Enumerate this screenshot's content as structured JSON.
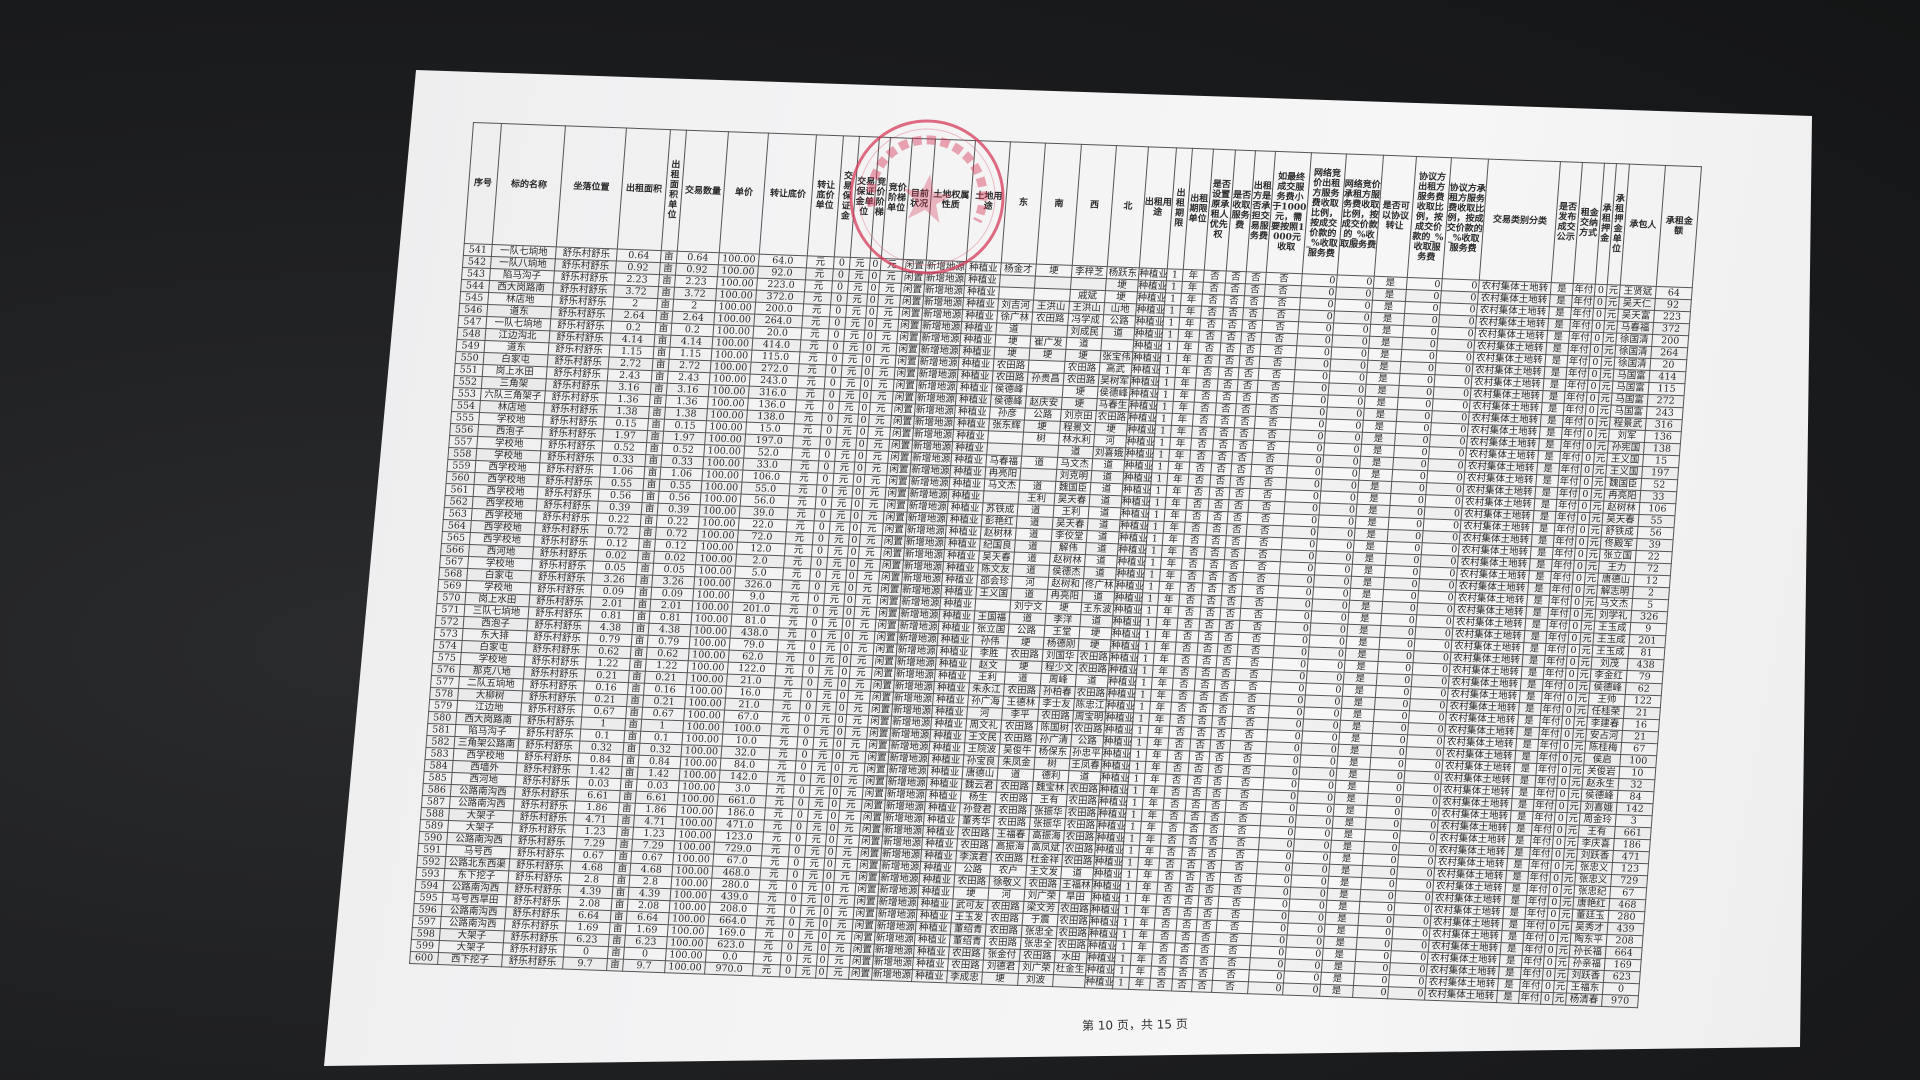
{
  "document": {
    "stamp_text": "舒乐乡舒乐村经济合作社",
    "footer": "第 10 页，共 15 页",
    "stamp_color": "#d63c5a"
  },
  "table": {
    "headers": [
      "序号",
      "标的名称",
      "坐落位置",
      "出租面积",
      "出租面积单位",
      "交易数量",
      "单价",
      "转让底价",
      "转让底价单位",
      "交易保证金",
      "交易保证金单位",
      "竞价阶梯",
      "竞价阶梯单位",
      "目前状况",
      "土地权属性质",
      "土地用途",
      "东",
      "南",
      "西",
      "北",
      "出租用途",
      "出租期限",
      "出租期限单位",
      "是否设置原承租人优先权",
      "是否收取服务费",
      "出租方是否承担交易服务费",
      "如最终成交服务费小于1000元，需要按照1000元收取",
      "网络竞价出租方服务费收取比例，按成交价款的_%收取服务费",
      "网络竞价承租方服务费收取比例，按成交价款的_%收取服务费",
      "是否可以协议转让",
      "协议方出租方服务费收取比例，按成交价款的_%收取服务费",
      "协议方承租方服务费收取比例，按成交价款的_%收取服务费",
      "交易类别分类",
      "是否发布成交公示",
      "租金交纳方式",
      "承租押金",
      "承租押金单位",
      "承包人",
      "承租金额"
    ],
    "common": {
      "area_unit": "亩",
      "unit_price": "100.00",
      "price_unit": "元",
      "deposit": "0",
      "deposit_unit": "元",
      "bid_step": "0",
      "bid_step_unit": "元",
      "status": "闲置",
      "ownership": "新增地源",
      "land_use": "种植业",
      "rent_use": "种植业",
      "term": "1",
      "term_unit": "年",
      "priority": "否",
      "service_fee": "否",
      "lessor_bears_fee": "否",
      "min_fee_1000": "否",
      "online_lessor_pct": "0",
      "online_lessee_pct": "0",
      "negotiable": "是",
      "agreed_lessor_pct": "0",
      "agreed_lessee_pct": "0",
      "category": "农村集体土地转",
      "publish": "是",
      "payment": "年付",
      "rent_deposit": "0",
      "rent_deposit_unit": "元"
    },
    "rows": [
      [
        "541",
        "一队七垧地",
        "舒乐村舒乐",
        "0.64",
        "64.0",
        "杨金才",
        "埂",
        "李梓芝",
        "杨跃东",
        "王贤斌",
        "64"
      ],
      [
        "542",
        "一队八垧地",
        "舒乐村舒乐",
        "0.92",
        "92.0",
        "",
        "",
        "",
        "埂",
        "吴天仁",
        "92"
      ],
      [
        "543",
        "陷马沟子",
        "舒乐村舒乐",
        "2.23",
        "223.0",
        "",
        "",
        "戚斌",
        "埂",
        "吴天富",
        "223"
      ],
      [
        "544",
        "西大岗路南",
        "舒乐村舒乐",
        "3.72",
        "372.0",
        "刘吉河",
        "王洪山",
        "王洪山",
        "山地",
        "马春福",
        "372"
      ],
      [
        "545",
        "林店地",
        "舒乐村舒乐",
        "2",
        "200.0",
        "徐广林",
        "农田路",
        "冯学成",
        "公路",
        "徐国清",
        "200"
      ],
      [
        "546",
        "道东",
        "舒乐村舒乐",
        "2.64",
        "264.0",
        "道",
        "",
        "刘成民",
        "道",
        "徐国清",
        "264"
      ],
      [
        "547",
        "一队七垧地",
        "舒乐村舒乐",
        "0.2",
        "20.0",
        "埂",
        "崔广发",
        "道",
        "",
        "徐国清",
        "20"
      ],
      [
        "548",
        "江边沟北",
        "舒乐村舒乐",
        "4.14",
        "414.0",
        "埂",
        "埂",
        "埂",
        "张宝伟",
        "马国富",
        "414"
      ],
      [
        "549",
        "道东",
        "舒乐村舒乐",
        "1.15",
        "115.0",
        "农田路",
        "",
        "农田路",
        "高武",
        "马国富",
        "115"
      ],
      [
        "550",
        "白家屯",
        "舒乐村舒乐",
        "2.72",
        "272.0",
        "农田路",
        "孙贵昌",
        "农田路",
        "吴树军",
        "马国富",
        "272"
      ],
      [
        "551",
        "岗上水田",
        "舒乐村舒乐",
        "2.43",
        "243.0",
        "侯德峰",
        "",
        "埂",
        "侯德峰",
        "马国富",
        "243"
      ],
      [
        "552",
        "三角架",
        "舒乐村舒乐",
        "3.16",
        "316.0",
        "侯德峰",
        "赵庆安",
        "埂",
        "马春生",
        "程景武",
        "316"
      ],
      [
        "553",
        "六队三角架子",
        "舒乐村舒乐",
        "1.36",
        "136.0",
        "孙彦",
        "公路",
        "刘京田",
        "农田路",
        "刘军",
        "136"
      ],
      [
        "554",
        "林店地",
        "舒乐村舒乐",
        "1.38",
        "138.0",
        "张东辉",
        "埂",
        "程景文",
        "埂",
        "孙宪国",
        "138"
      ],
      [
        "555",
        "学校地",
        "舒乐村舒乐",
        "0.15",
        "15.0",
        "",
        "树",
        "林水利",
        "河",
        "王义国",
        "15"
      ],
      [
        "556",
        "西泡子",
        "舒乐村舒乐",
        "1.97",
        "197.0",
        "",
        "",
        "道",
        "刘喜娥",
        "王义国",
        "197"
      ],
      [
        "557",
        "学校地",
        "舒乐村舒乐",
        "0.52",
        "52.0",
        "马春福",
        "道",
        "马文杰",
        "道",
        "魏国臣",
        "52"
      ],
      [
        "558",
        "学校地",
        "舒乐村舒乐",
        "0.33",
        "33.0",
        "冉亮阳",
        "",
        "刘克明",
        "道",
        "冉亮阳",
        "33"
      ],
      [
        "559",
        "西学校地",
        "舒乐村舒乐",
        "1.06",
        "106.0",
        "马文杰",
        "道",
        "魏国臣",
        "道",
        "赵树林",
        "106"
      ],
      [
        "560",
        "西学校地",
        "舒乐村舒乐",
        "0.55",
        "55.0",
        "",
        "王利",
        "吴天春",
        "道",
        "吴天春",
        "55"
      ],
      [
        "561",
        "西学校地",
        "舒乐村舒乐",
        "0.56",
        "56.0",
        "苏铁成",
        "道",
        "王利",
        "道",
        "舒铁成",
        "56"
      ],
      [
        "562",
        "西学校地",
        "舒乐村舒乐",
        "0.39",
        "39.0",
        "彭艳红",
        "道",
        "吴天春",
        "道",
        "佟殿军",
        "39"
      ],
      [
        "563",
        "西学校地",
        "舒乐村舒乐",
        "0.22",
        "22.0",
        "赵树林",
        "道",
        "李佼堂",
        "道",
        "张立国",
        "22"
      ],
      [
        "564",
        "西学校地",
        "舒乐村舒乐",
        "0.72",
        "72.0",
        "纪国良",
        "道",
        "解伟",
        "道",
        "王力",
        "72"
      ],
      [
        "565",
        "西学校地",
        "舒乐村舒乐",
        "0.12",
        "12.0",
        "吴天春",
        "道",
        "赵树林",
        "道",
        "唐德山",
        "12"
      ],
      [
        "566",
        "西河地",
        "舒乐村舒乐",
        "0.02",
        "2.0",
        "陈文友",
        "道",
        "侯德杰",
        "道",
        "解志明",
        "2"
      ],
      [
        "567",
        "学校地",
        "舒乐村舒乐",
        "0.05",
        "5.0",
        "邵会珍",
        "河",
        "赵树和",
        "佟广林",
        "马文杰",
        "5"
      ],
      [
        "568",
        "白家屯",
        "舒乐村舒乐",
        "3.26",
        "326.0",
        "王义国",
        "道",
        "冉亮阳",
        "道",
        "刘学礼",
        "326"
      ],
      [
        "569",
        "学校地",
        "舒乐村舒乐",
        "0.09",
        "9.0",
        "",
        "刘宁文",
        "埂",
        "王东波",
        "王玉成",
        "9"
      ],
      [
        "570",
        "岗上水田",
        "舒乐村舒乐",
        "2.01",
        "201.0",
        "王国福",
        "道",
        "李洋",
        "道",
        "王玉成",
        "201"
      ],
      [
        "571",
        "三队七垧地",
        "舒乐村舒乐",
        "0.81",
        "81.0",
        "张立国",
        "公路",
        "王堂",
        "埂",
        "王玉成",
        "81"
      ],
      [
        "572",
        "西泡子",
        "舒乐村舒乐",
        "4.38",
        "438.0",
        "孙伟",
        "埂",
        "杨德刚",
        "埂",
        "刘茂",
        "438"
      ],
      [
        "573",
        "东大排",
        "舒乐村舒乐",
        "0.79",
        "79.0",
        "李胜",
        "农田路",
        "刘国华",
        "农田路",
        "李金红",
        "79"
      ],
      [
        "574",
        "白家屯",
        "舒乐村舒乐",
        "0.62",
        "62.0",
        "赵文",
        "埂",
        "程少文",
        "农田路",
        "侯德峰",
        "62"
      ],
      [
        "575",
        "学校地",
        "舒乐村舒乐",
        "1.22",
        "122.0",
        "王利",
        "道",
        "周峰",
        "道",
        "王帅",
        "122"
      ],
      [
        "576",
        "那克八地",
        "舒乐村舒乐",
        "0.21",
        "21.0",
        "朱永江",
        "农田路",
        "孙柏春",
        "农田路",
        "任桂荣",
        "21"
      ],
      [
        "577",
        "二队五垧地",
        "舒乐村舒乐",
        "0.16",
        "16.0",
        "孙广海",
        "王德林",
        "李士友",
        "陈忠江",
        "李建春",
        "16"
      ],
      [
        "578",
        "大柳树",
        "舒乐村舒乐",
        "0.21",
        "21.0",
        "河",
        "李平",
        "农田路",
        "周宝明",
        "安占河",
        "21"
      ],
      [
        "579",
        "江边地",
        "舒乐村舒乐",
        "0.67",
        "67.0",
        "周文礼",
        "农田路",
        "陈国树",
        "农田路",
        "陈桂梅",
        "67"
      ],
      [
        "580",
        "西大岗路南",
        "舒乐村舒乐",
        "1",
        "100.0",
        "王文民",
        "农田路",
        "孙广清",
        "公路",
        "侯启",
        "100"
      ],
      [
        "581",
        "陷马沟子",
        "舒乐村舒乐",
        "0.1",
        "10.0",
        "王院波",
        "吴俊牛",
        "杨保东",
        "孙忠平",
        "关俊岩",
        "10"
      ],
      [
        "582",
        "三角架公路南",
        "舒乐村舒乐",
        "0.32",
        "32.0",
        "孙宝良",
        "朱凤金",
        "树",
        "王凤春",
        "赵永生",
        "32"
      ],
      [
        "583",
        "西学校地",
        "舒乐村舒乐",
        "0.84",
        "84.0",
        "唐德山",
        "道",
        "德利",
        "道",
        "侯德峰",
        "84"
      ],
      [
        "584",
        "西墙外",
        "舒乐村舒乐",
        "1.42",
        "142.0",
        "魏云君",
        "农田路",
        "魏宝林",
        "农田路",
        "刘喜娥",
        "142"
      ],
      [
        "585",
        "西河地",
        "舒乐村舒乐",
        "0.03",
        "3.0",
        "杨生",
        "农田路",
        "王有",
        "农田路",
        "周金玲",
        "3"
      ],
      [
        "586",
        "公路南沟西",
        "舒乐村舒乐",
        "6.61",
        "661.0",
        "孙登君",
        "农田路",
        "张振华",
        "农田路",
        "王有",
        "661"
      ],
      [
        "587",
        "公路南沟西",
        "舒乐村舒乐",
        "1.86",
        "186.0",
        "董秀华",
        "农田路",
        "张振华",
        "农田路",
        "李庆喜",
        "186"
      ],
      [
        "588",
        "大架子",
        "舒乐村舒乐",
        "4.71",
        "471.0",
        "农田路",
        "王福春",
        "高振海",
        "农田路",
        "刘跃香",
        "471"
      ],
      [
        "589",
        "大架子",
        "舒乐村舒乐",
        "1.23",
        "123.0",
        "农田路",
        "高振海",
        "高凤斌",
        "农田路",
        "张忠义",
        "123"
      ],
      [
        "590",
        "公路南沟西",
        "舒乐村舒乐",
        "7.29",
        "729.0",
        "李滨君",
        "农田路",
        "杜金祥",
        "农田路",
        "张忠义",
        "729"
      ],
      [
        "591",
        "马号西",
        "舒乐村舒乐",
        "0.67",
        "67.0",
        "公路",
        "农户",
        "王文发",
        "道",
        "张忠纪",
        "67"
      ],
      [
        "592",
        "公路北东西渠",
        "舒乐村舒乐",
        "4.68",
        "468.0",
        "农田路",
        "徐敬义",
        "农田路",
        "王福林",
        "唐艳红",
        "468"
      ],
      [
        "593",
        "东下挖子",
        "舒乐村舒乐",
        "2.8",
        "280.0",
        "埂",
        "河",
        "刘广荣",
        "旱田",
        "董廷玉",
        "280"
      ],
      [
        "594",
        "公路南沟西",
        "舒乐村舒乐",
        "4.39",
        "439.0",
        "武可友",
        "农田路",
        "梁文芳",
        "农田路",
        "吴秀才",
        "439"
      ],
      [
        "595",
        "马号西旱田",
        "舒乐村舒乐",
        "2.08",
        "208.0",
        "王玉发",
        "农田路",
        "于震",
        "农田路",
        "陶东平",
        "208"
      ],
      [
        "596",
        "公路南沟西",
        "舒乐村舒乐",
        "6.64",
        "664.0",
        "董绍青",
        "农田路",
        "张忠全",
        "农田路",
        "孙长福",
        "664"
      ],
      [
        "597",
        "公路南沟西",
        "舒乐村舒乐",
        "1.69",
        "169.0",
        "董绍青",
        "农田路",
        "张忠全",
        "农田路",
        "孙亲福",
        "169"
      ],
      [
        "598",
        "大架子",
        "舒乐村舒乐",
        "6.23",
        "623.0",
        "农田路",
        "张金付",
        "农田路",
        "水田",
        "刘跃香",
        "623"
      ],
      [
        "599",
        "大架子",
        "舒乐村舒乐",
        "0",
        "0.0",
        "农田路",
        "刘德君",
        "刘广荣",
        "杜金生",
        "王福东",
        "0"
      ],
      [
        "600",
        "西下挖子",
        "舒乐村舒乐",
        "9.7",
        "970.0",
        "李成忠",
        "埂",
        "刘波",
        "",
        "杨清春",
        "970"
      ]
    ]
  }
}
